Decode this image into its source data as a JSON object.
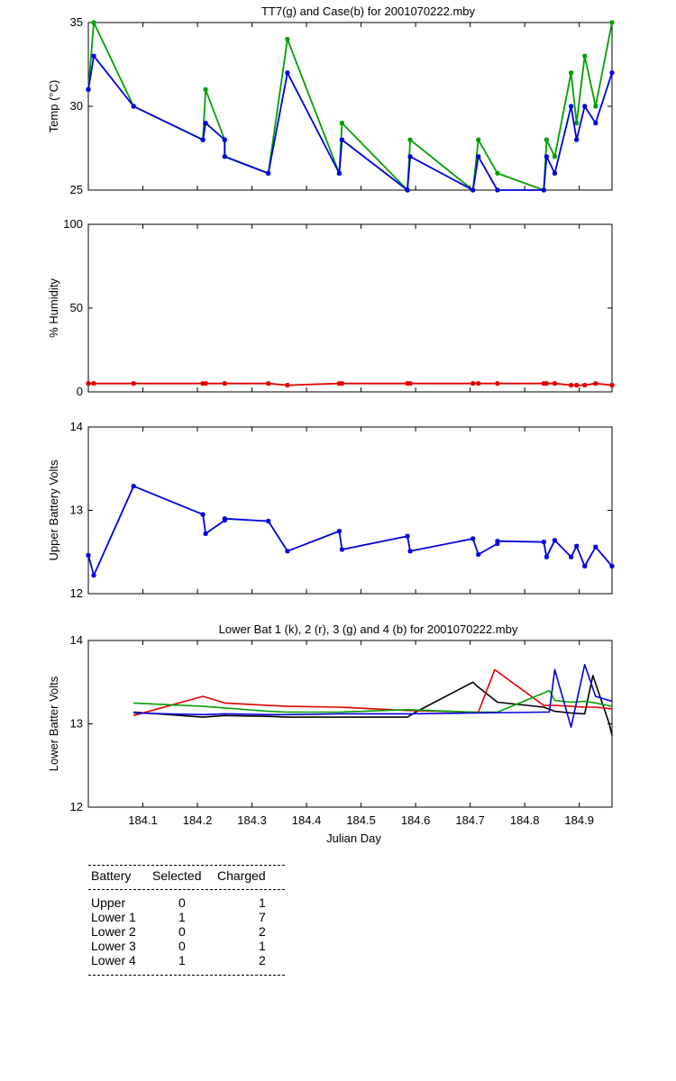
{
  "colors": {
    "green": "#00a000",
    "blue": "#0000e0",
    "red": "#e00000",
    "black": "#000000"
  },
  "x_axis": {
    "label": "Julian Day",
    "ticks": [
      "184.1",
      "184.2",
      "184.3",
      "184.4",
      "184.5",
      "184.6",
      "184.7",
      "184.8",
      "184.9"
    ]
  },
  "chart_data": [
    {
      "type": "line",
      "title": "TT7(g) and Case(b) for 2001070222.mby",
      "ylabel": "Temp  (°C)",
      "xlim": [
        184.0,
        184.96
      ],
      "ylim": [
        25,
        35
      ],
      "yticks": [
        "25",
        "30",
        "35"
      ],
      "series": [
        {
          "name": "TT7",
          "color": "green",
          "markers": true,
          "x": [
            184.0,
            184.01,
            184.083,
            184.21,
            184.215,
            184.25,
            184.25,
            184.33,
            184.365,
            184.46,
            184.465,
            184.585,
            184.59,
            184.705,
            184.715,
            184.75,
            184.835,
            184.84,
            184.855,
            184.885,
            184.895,
            184.91,
            184.93,
            184.96
          ],
          "y": [
            31,
            35,
            30,
            28,
            31,
            28,
            27,
            26,
            34,
            26,
            29,
            25,
            28,
            25,
            28,
            26,
            25,
            28,
            27,
            32,
            29,
            33,
            30,
            35
          ]
        },
        {
          "name": "Case",
          "color": "blue",
          "markers": true,
          "x": [
            184.0,
            184.01,
            184.083,
            184.21,
            184.215,
            184.25,
            184.25,
            184.33,
            184.365,
            184.46,
            184.465,
            184.585,
            184.59,
            184.705,
            184.715,
            184.75,
            184.835,
            184.84,
            184.855,
            184.885,
            184.895,
            184.91,
            184.93,
            184.96
          ],
          "y": [
            31,
            33,
            30,
            28,
            29,
            28,
            27,
            26,
            32,
            26,
            28,
            25,
            27,
            25,
            27,
            25,
            25,
            27,
            26,
            30,
            28,
            30,
            29,
            32
          ]
        }
      ]
    },
    {
      "type": "line",
      "title": "",
      "ylabel": "% Humidity",
      "xlim": [
        184.0,
        184.96
      ],
      "ylim": [
        0,
        100
      ],
      "yticks": [
        "0",
        "50",
        "100"
      ],
      "series": [
        {
          "name": "Humidity",
          "color": "red",
          "markers": true,
          "x": [
            184.0,
            184.01,
            184.083,
            184.21,
            184.215,
            184.25,
            184.33,
            184.365,
            184.46,
            184.465,
            184.585,
            184.59,
            184.705,
            184.715,
            184.75,
            184.835,
            184.84,
            184.855,
            184.885,
            184.895,
            184.91,
            184.93,
            184.96
          ],
          "y": [
            5,
            5,
            5,
            5,
            5,
            5,
            5,
            4,
            5,
            5,
            5,
            5,
            5,
            5,
            5,
            5,
            5,
            5,
            4,
            4,
            4,
            5,
            4
          ]
        }
      ]
    },
    {
      "type": "line",
      "title": "",
      "ylabel": "Upper Battery Volts",
      "xlim": [
        184.0,
        184.96
      ],
      "ylim": [
        12,
        14
      ],
      "yticks": [
        "12",
        "13",
        "14"
      ],
      "series": [
        {
          "name": "Upper",
          "color": "blue",
          "markers": true,
          "x": [
            184.0,
            184.01,
            184.083,
            184.21,
            184.215,
            184.25,
            184.25,
            184.33,
            184.365,
            184.46,
            184.465,
            184.585,
            184.59,
            184.705,
            184.715,
            184.75,
            184.75,
            184.835,
            184.84,
            184.855,
            184.885,
            184.895,
            184.91,
            184.93,
            184.96
          ],
          "y": [
            12.46,
            12.22,
            13.29,
            12.95,
            12.72,
            12.88,
            12.9,
            12.87,
            12.51,
            12.75,
            12.53,
            12.69,
            12.51,
            12.66,
            12.47,
            12.6,
            12.63,
            12.62,
            12.44,
            12.64,
            12.44,
            12.57,
            12.33,
            12.56,
            12.33
          ]
        }
      ]
    },
    {
      "type": "line",
      "title": "Lower Bat 1 (k), 2 (r), 3 (g) and 4 (b) for 2001070222.mby",
      "ylabel": "Lower Batter Volts",
      "xlim": [
        184.0,
        184.96
      ],
      "ylim": [
        12,
        14
      ],
      "yticks": [
        "12",
        "13",
        "14"
      ],
      "series": [
        {
          "name": "Lower 1",
          "color": "black",
          "markers": false,
          "x": [
            184.083,
            184.21,
            184.25,
            184.33,
            184.365,
            184.46,
            184.585,
            184.6,
            184.705,
            184.715,
            184.75,
            184.835,
            184.855,
            184.885,
            184.91,
            184.925,
            184.955,
            184.96
          ],
          "y": [
            13.14,
            13.08,
            13.1,
            13.09,
            13.08,
            13.08,
            13.08,
            13.14,
            13.5,
            13.44,
            13.26,
            13.2,
            13.15,
            13.13,
            13.12,
            13.58,
            13.0,
            12.86
          ]
        },
        {
          "name": "Lower 2",
          "color": "red",
          "markers": false,
          "x": [
            184.083,
            184.21,
            184.25,
            184.33,
            184.365,
            184.46,
            184.585,
            184.705,
            184.715,
            184.745,
            184.835,
            184.855,
            184.885,
            184.91,
            184.93,
            184.96
          ],
          "y": [
            13.1,
            13.33,
            13.25,
            13.22,
            13.21,
            13.2,
            13.16,
            13.14,
            13.14,
            13.65,
            13.22,
            13.22,
            13.21,
            13.2,
            13.2,
            13.18
          ]
        },
        {
          "name": "Lower 3",
          "color": "green",
          "markers": false,
          "x": [
            184.083,
            184.21,
            184.25,
            184.33,
            184.365,
            184.46,
            184.585,
            184.705,
            184.75,
            184.835,
            184.845,
            184.855,
            184.885,
            184.91,
            184.93,
            184.96
          ],
          "y": [
            13.25,
            13.21,
            13.19,
            13.15,
            13.14,
            13.14,
            13.17,
            13.14,
            13.14,
            13.37,
            13.4,
            13.28,
            13.26,
            13.27,
            13.25,
            13.21
          ]
        },
        {
          "name": "Lower 4",
          "color": "blue",
          "markers": false,
          "x": [
            184.083,
            184.21,
            184.25,
            184.33,
            184.365,
            184.46,
            184.585,
            184.705,
            184.835,
            184.845,
            184.855,
            184.885,
            184.91,
            184.93,
            184.96
          ],
          "y": [
            13.13,
            13.11,
            13.12,
            13.11,
            13.11,
            13.12,
            13.12,
            13.13,
            13.14,
            13.14,
            13.65,
            12.96,
            13.71,
            13.33,
            13.27
          ]
        }
      ]
    }
  ],
  "table": {
    "headers": [
      "Battery",
      "Selected",
      "Charged"
    ],
    "rows": [
      {
        "battery": "Upper",
        "selected": "0",
        "charged": "1"
      },
      {
        "battery": "Lower 1",
        "selected": "1",
        "charged": "7"
      },
      {
        "battery": "Lower 2",
        "selected": "0",
        "charged": "2"
      },
      {
        "battery": "Lower 3",
        "selected": "0",
        "charged": "1"
      },
      {
        "battery": "Lower 4",
        "selected": "1",
        "charged": "2"
      }
    ]
  }
}
